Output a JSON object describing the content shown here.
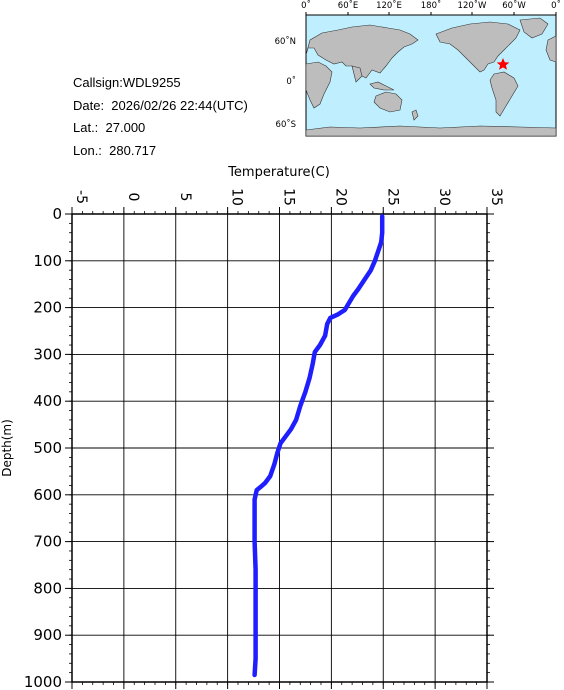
{
  "station": {
    "callsign_label": "Callsign:WDL9255",
    "date_label": "Date:  2026/02/26 22:44(UTC)",
    "lat_label": "Lat.:  27.000",
    "lon_label": "Lon.:  280.717"
  },
  "map": {
    "top_labels": [
      "0˚",
      "60˚E",
      "120˚E",
      "180˚",
      "120˚W",
      "60˚W",
      "0˚"
    ],
    "lat_labels": [
      "60˚N",
      "0˚",
      "60˚S"
    ],
    "ocean_color": "#bfefff",
    "land_color": "#bdbdbd",
    "marker_color": "#ff0000",
    "marker_icon": "star-icon"
  },
  "chart_data": {
    "type": "line",
    "xlabel": "Temperature(C)",
    "ylabel": "Depth(m)",
    "x_ticks": [
      "-5",
      "0",
      "5",
      "10",
      "15",
      "20",
      "25",
      "30",
      "35"
    ],
    "y_ticks": [
      "0",
      "100",
      "200",
      "300",
      "400",
      "500",
      "600",
      "700",
      "800",
      "900",
      "1000"
    ],
    "xlim": [
      -5,
      35
    ],
    "ylim": [
      1000,
      0
    ],
    "grid": true,
    "line_color": "#1e1eff",
    "series": [
      {
        "points": [
          [
            24.9,
            5
          ],
          [
            24.9,
            20
          ],
          [
            24.9,
            40
          ],
          [
            24.8,
            60
          ],
          [
            24.5,
            80
          ],
          [
            24.2,
            100
          ],
          [
            23.8,
            120
          ],
          [
            23.2,
            140
          ],
          [
            22.6,
            160
          ],
          [
            22.1,
            175
          ],
          [
            21.7,
            190
          ],
          [
            21.3,
            205
          ],
          [
            20.6,
            215
          ],
          [
            19.9,
            222
          ],
          [
            19.6,
            235
          ],
          [
            19.4,
            260
          ],
          [
            18.9,
            280
          ],
          [
            18.4,
            295
          ],
          [
            18.2,
            320
          ],
          [
            17.9,
            350
          ],
          [
            17.5,
            380
          ],
          [
            17.0,
            410
          ],
          [
            16.6,
            440
          ],
          [
            16.1,
            460
          ],
          [
            15.6,
            475
          ],
          [
            15.1,
            490
          ],
          [
            14.8,
            510
          ],
          [
            14.5,
            535
          ],
          [
            14.1,
            560
          ],
          [
            13.6,
            575
          ],
          [
            13.2,
            583
          ],
          [
            12.8,
            590
          ],
          [
            12.6,
            610
          ],
          [
            12.6,
            650
          ],
          [
            12.6,
            700
          ],
          [
            12.7,
            760
          ],
          [
            12.7,
            800
          ],
          [
            12.7,
            850
          ],
          [
            12.7,
            900
          ],
          [
            12.7,
            950
          ],
          [
            12.6,
            985
          ]
        ]
      }
    ]
  }
}
